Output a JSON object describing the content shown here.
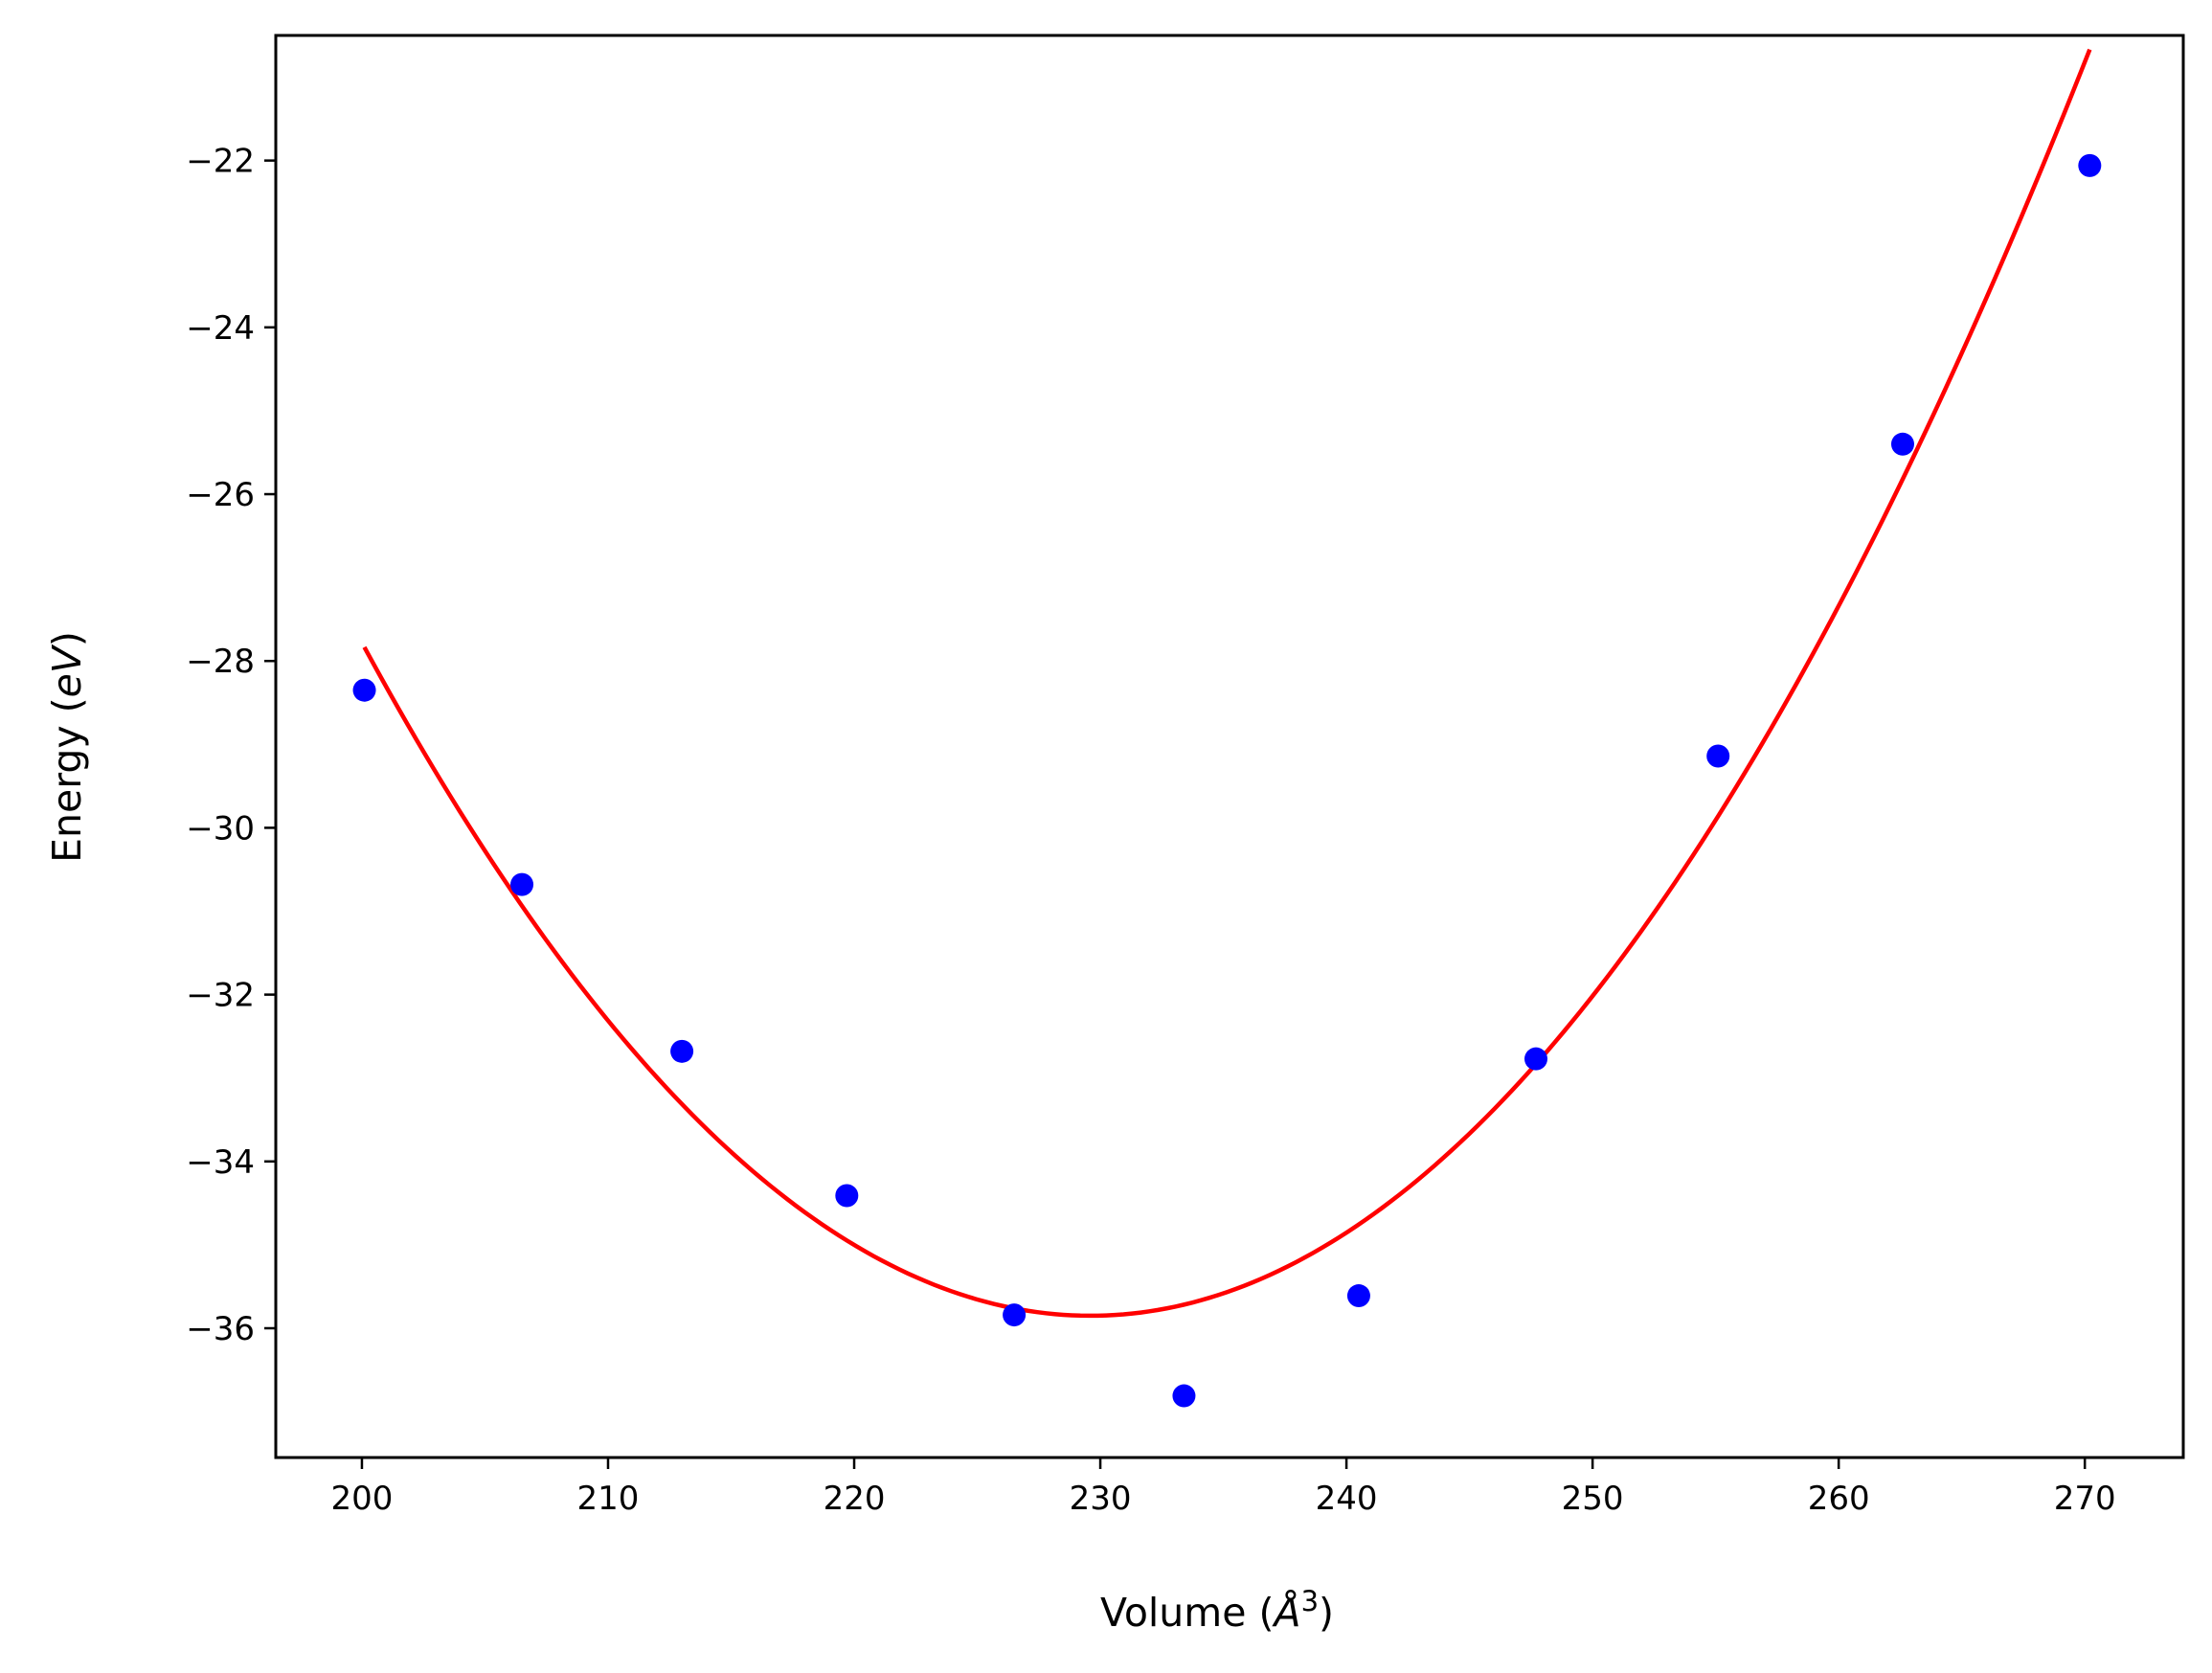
{
  "chart_data": {
    "type": "scatter",
    "title": "",
    "xlabel": "Volume (",
    "xlabel_unit": "Å",
    "xlabel_exp": "3",
    "xlabel_close": ")",
    "ylabel": "Energy (",
    "ylabel_unit": "eV",
    "ylabel_close": ")",
    "xlim": [
      196.5,
      274
    ],
    "ylim": [
      -37.55,
      -20.5
    ],
    "xticks": [
      200,
      210,
      220,
      230,
      240,
      250,
      260,
      270
    ],
    "xtick_labels": [
      "200",
      "210",
      "220",
      "230",
      "240",
      "250",
      "260",
      "270"
    ],
    "yticks": [
      -22,
      -24,
      -26,
      -28,
      -30,
      -32,
      -34,
      -36
    ],
    "ytick_labels": [
      "−22",
      "−24",
      "−26",
      "−28",
      "−30",
      "−32",
      "−34",
      "−36"
    ],
    "grid": false,
    "series": [
      {
        "kind": "points",
        "color": "#0000ff",
        "x": [
          200.1,
          206.5,
          213.0,
          219.7,
          226.5,
          233.4,
          240.5,
          247.7,
          255.1,
          262.6,
          270.2
        ],
        "y": [
          -28.35,
          -30.68,
          -32.68,
          -34.41,
          -35.84,
          -36.81,
          -35.61,
          -32.77,
          -29.14,
          -25.4,
          -22.06
        ]
      },
      {
        "kind": "fit-line",
        "color": "#ff0000",
        "x_range": [
          200.1,
          270.2
        ],
        "quadratic_fit": {
          "vertex_x": 229.6,
          "vertex_y": -35.85,
          "a": 0.00921
        }
      }
    ]
  }
}
